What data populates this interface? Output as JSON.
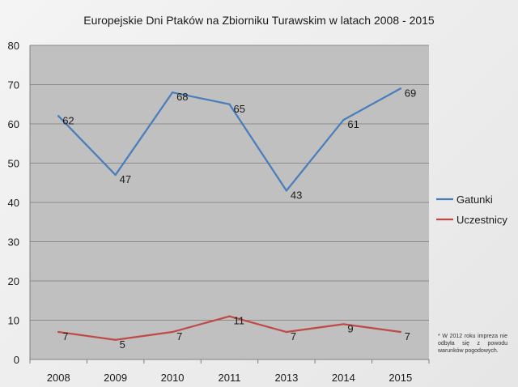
{
  "chart_data": {
    "type": "line",
    "title": "Europejskie Dni Ptaków na Zbiorniku Turawskim w latach 2008 - 2015",
    "categories": [
      "2008",
      "2009",
      "2010",
      "2011",
      "2013",
      "2014",
      "2015"
    ],
    "series": [
      {
        "name": "Gatunki",
        "color": "#4a7ebb",
        "values": [
          62,
          47,
          68,
          65,
          43,
          61,
          69
        ]
      },
      {
        "name": "Uczestnicy",
        "color": "#be4b48",
        "values": [
          7,
          5,
          7,
          11,
          7,
          9,
          7
        ]
      }
    ],
    "ylim": [
      0,
      80
    ],
    "yticks": [
      0,
      10,
      20,
      30,
      40,
      50,
      60,
      70,
      80
    ],
    "grid": true,
    "legend": "right",
    "plot_background": "#c0c0c0",
    "xlabel": "",
    "ylabel": ""
  },
  "note": "* W 2012 roku impreza nie odbyła się z powodu warunków pogodowych."
}
